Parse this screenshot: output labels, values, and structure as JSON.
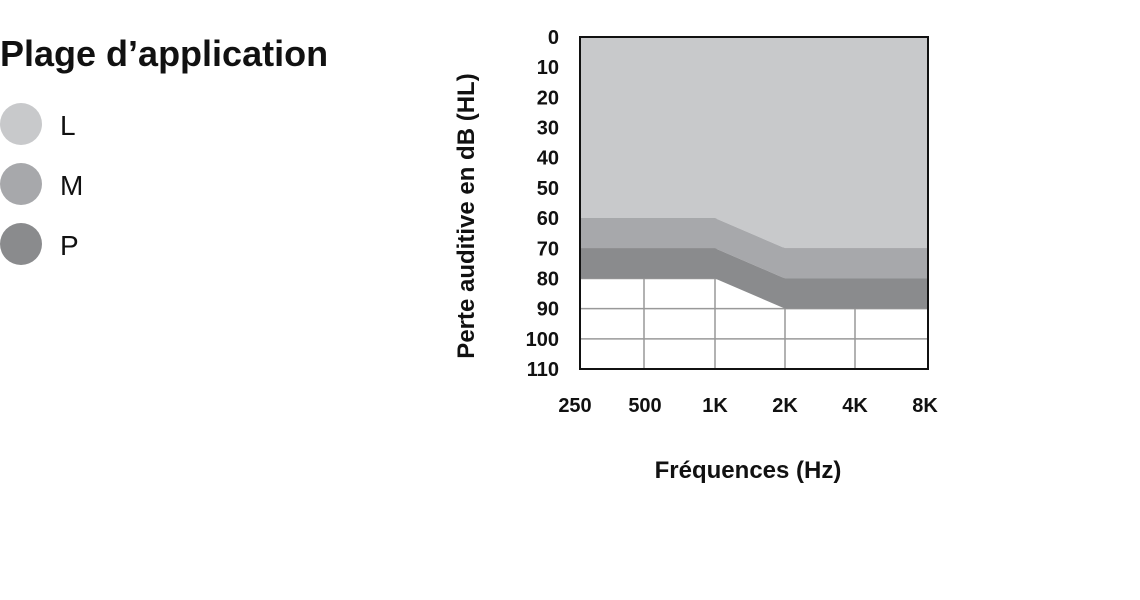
{
  "chart_data": {
    "type": "area",
    "title": "",
    "xlabel": "Fréquences (Hz)",
    "ylabel": "Perte auditive en dB (HL)",
    "categories": [
      "250",
      "500",
      "1K",
      "2K",
      "4K",
      "8K"
    ],
    "y_ticks": [
      "0",
      "10",
      "20",
      "30",
      "40",
      "50",
      "60",
      "70",
      "80",
      "90",
      "100",
      "110"
    ],
    "ylim": [
      0,
      110
    ],
    "y_inverted": true,
    "grid": true,
    "legend": {
      "title": "Plage d’application",
      "placement": "left"
    },
    "series": [
      {
        "name": "L",
        "color": "#c8c9cb",
        "top": [
          0,
          0,
          0,
          0,
          0,
          0
        ],
        "bottom": [
          60,
          60,
          60,
          70,
          70,
          70
        ]
      },
      {
        "name": "M",
        "color": "#a7a8ab",
        "top": [
          60,
          60,
          60,
          70,
          70,
          70
        ],
        "bottom": [
          70,
          70,
          70,
          80,
          80,
          80
        ]
      },
      {
        "name": "P",
        "color": "#8a8b8d",
        "top": [
          70,
          70,
          70,
          80,
          80,
          80
        ],
        "bottom": [
          80,
          80,
          80,
          90,
          90,
          90
        ]
      }
    ]
  }
}
